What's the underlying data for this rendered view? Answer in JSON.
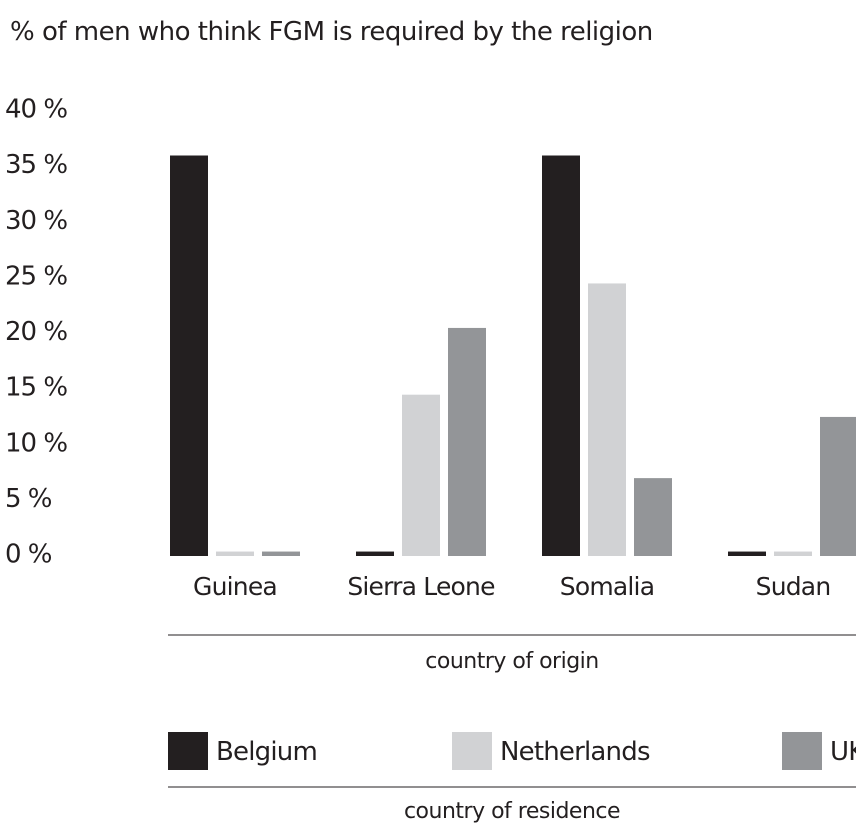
{
  "chart_data": {
    "type": "bar",
    "title": "% of men who think FGM is required by the religion",
    "xlabel": "country of origin",
    "legend_title": "country of residence",
    "legend_placement": "bottom",
    "ylim": [
      0,
      40
    ],
    "yticks": [
      0,
      5,
      10,
      15,
      20,
      25,
      30,
      35,
      40
    ],
    "ytick_labels": [
      "0 %",
      "5 %",
      "10 %",
      "15 %",
      "20 %",
      "25 %",
      "30 %",
      "35 %",
      "40 %"
    ],
    "grid": false,
    "categories": [
      "Guinea",
      "Sierra Leone",
      "Somalia",
      "Sudan"
    ],
    "series": [
      {
        "name": "Belgium",
        "color": "#231f20",
        "values": [
          36,
          0.4,
          36,
          0.4
        ]
      },
      {
        "name": "Netherlands",
        "color": "#d1d2d4",
        "values": [
          0.4,
          14.5,
          24.5,
          0.4
        ]
      },
      {
        "name": "UK",
        "color": "#939598",
        "values": [
          0.4,
          20.5,
          7,
          12.5
        ]
      }
    ]
  }
}
